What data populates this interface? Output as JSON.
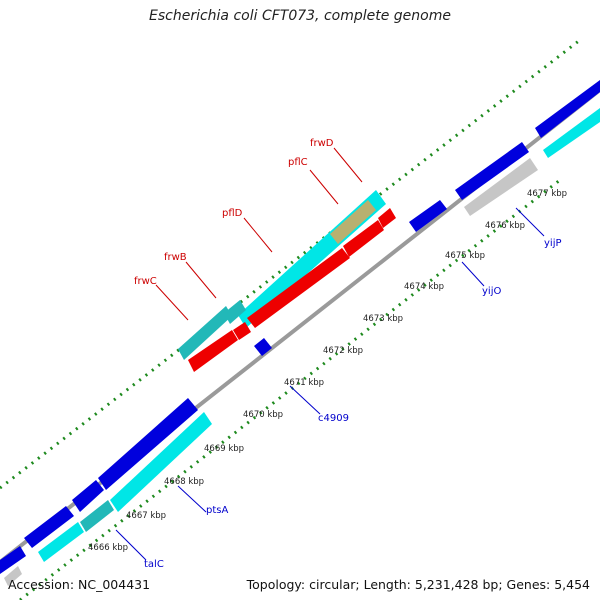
{
  "title": "Escherichia coli CFT073, complete genome",
  "footer": {
    "accession": "Accession: NC_004431",
    "summary": "Topology: circular; Length: 5,231,428 bp; Genes: 5,454"
  },
  "colors": {
    "backbone": "#8c8c8c",
    "gc_ticks": "#1e8a1e",
    "forward_cds": "#0000dd",
    "forward_rna": "#00e0e0",
    "reverse_cds": "#ee0000",
    "pseudo": "#c0c0c0",
    "rna_dark": "#22b8b8",
    "highlight": "#b8b070",
    "label_red": "#cc0000",
    "label_blue": "#0000cc"
  },
  "kbp_ticks": [
    "4666 kbp",
    "4667 kbp",
    "4668 kbp",
    "4669 kbp",
    "4670 kbp",
    "4671 kbp",
    "4672 kbp",
    "4673 kbp",
    "4674 kbp",
    "4675 kbp",
    "4676 kbp",
    "4677 kbp"
  ],
  "gene_labels": {
    "frwD": "frwD",
    "pflC": "pflC",
    "pflD": "pflD",
    "frwB": "frwB",
    "frwC": "frwC",
    "yijP": "yijP",
    "yijO": "yijO",
    "c4909": "c4909",
    "ptsA": "ptsA",
    "talC": "talC"
  }
}
